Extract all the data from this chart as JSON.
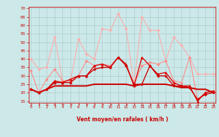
{
  "background_color": "#cce8e8",
  "grid_color": "#aacccc",
  "xlabel": "Vent moyen/en rafales ( km/h )",
  "xlabel_color": "#cc0000",
  "tick_color": "#cc0000",
  "ylim": [
    14,
    71
  ],
  "xlim": [
    -0.3,
    23.3
  ],
  "yticks": [
    15,
    20,
    25,
    30,
    35,
    40,
    45,
    50,
    55,
    60,
    65,
    70
  ],
  "xticks": [
    0,
    1,
    2,
    3,
    4,
    5,
    6,
    7,
    8,
    9,
    10,
    11,
    12,
    13,
    14,
    15,
    16,
    17,
    18,
    19,
    20,
    21,
    22,
    23
  ],
  "series": [
    {
      "color": "#ffaaaa",
      "lw": 0.8,
      "marker": "D",
      "markersize": 2.0,
      "values": [
        40,
        34,
        35,
        53,
        27,
        27,
        52,
        43,
        40,
        58,
        57,
        67,
        58,
        25,
        65,
        57,
        57,
        39,
        53,
        48,
        41,
        31,
        31,
        31
      ]
    },
    {
      "color": "#ff8888",
      "lw": 0.8,
      "marker": "D",
      "markersize": 2.0,
      "values": [
        33,
        20,
        28,
        34,
        27,
        27,
        30,
        39,
        36,
        37,
        36,
        41,
        36,
        25,
        36,
        38,
        37,
        39,
        27,
        26,
        41,
        16,
        20,
        21
      ]
    },
    {
      "color": "#dd0000",
      "lw": 1.0,
      "marker": "^",
      "markersize": 2.5,
      "values": [
        22,
        20,
        22,
        27,
        26,
        28,
        30,
        30,
        36,
        37,
        35,
        41,
        37,
        24,
        41,
        36,
        31,
        32,
        26,
        24,
        24,
        15,
        20,
        21
      ]
    },
    {
      "color": "#cc0000",
      "lw": 1.0,
      "marker": "D",
      "markersize": 2.0,
      "values": [
        22,
        20,
        22,
        26,
        26,
        26,
        30,
        30,
        34,
        35,
        35,
        41,
        36,
        25,
        25,
        36,
        30,
        30,
        24,
        24,
        23,
        16,
        19,
        20
      ]
    },
    {
      "color": "#cc0000",
      "lw": 1.5,
      "marker": null,
      "markersize": 0,
      "values": [
        22,
        20,
        22,
        24,
        24,
        24,
        24,
        24,
        25,
        25,
        25,
        25,
        25,
        24,
        25,
        25,
        25,
        25,
        24,
        23,
        23,
        22,
        22,
        20
      ]
    }
  ],
  "arrows": [
    "↙",
    "↗",
    "→",
    "⇒",
    "⇒",
    "↗",
    "↗",
    "↗",
    "↗",
    "↗",
    "↗",
    "↗",
    "↗",
    "↗",
    "→",
    "↗",
    "⇒",
    "⇒",
    "⇒",
    "⇒",
    "⇒",
    "→",
    "→",
    "→"
  ]
}
